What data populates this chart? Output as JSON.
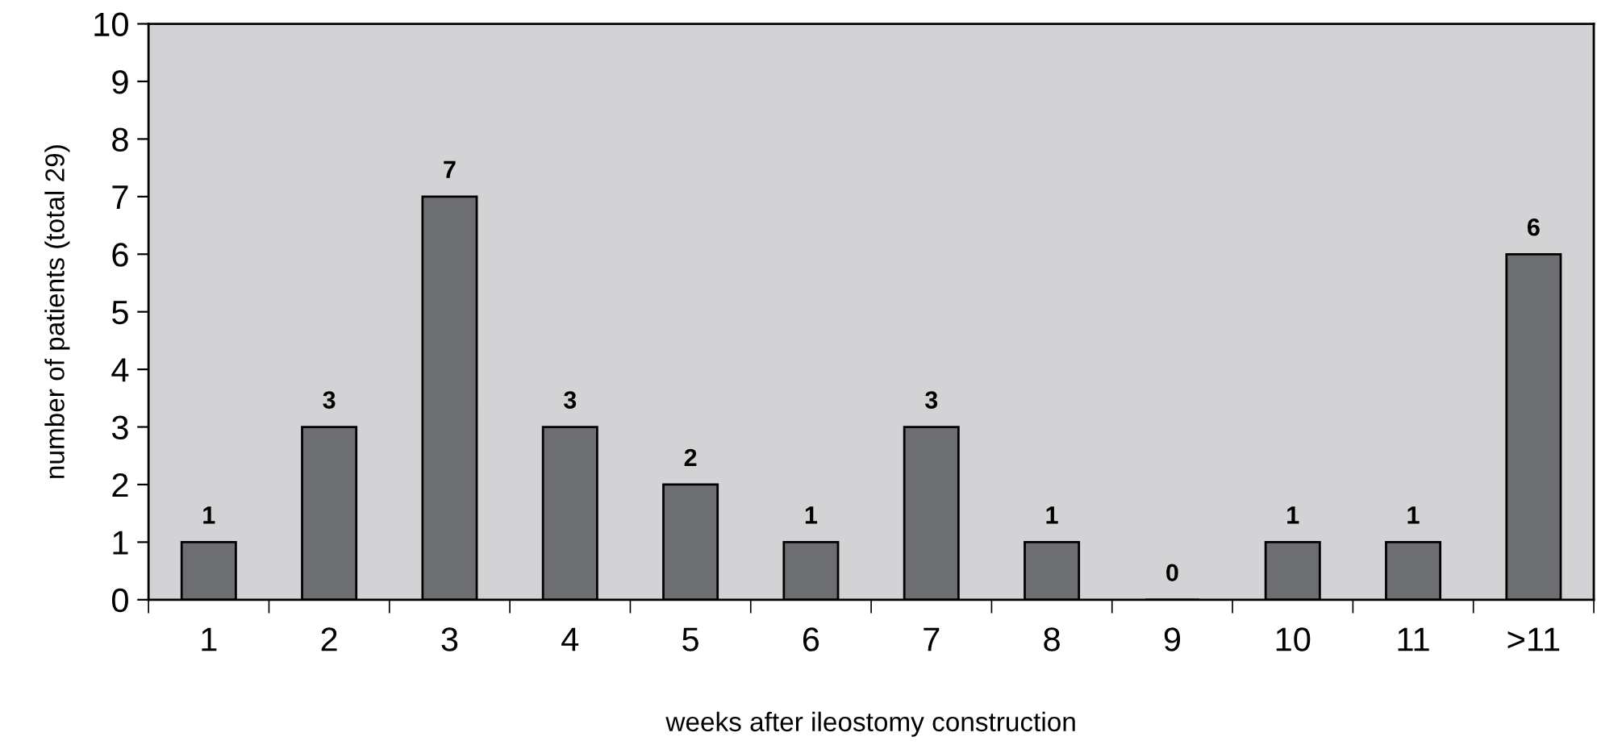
{
  "chart_data": {
    "type": "bar",
    "xlabel": "weeks after ileostomy construction",
    "ylabel": "number of patients (total 29)",
    "categories": [
      "1",
      "2",
      "3",
      "4",
      "5",
      "6",
      "7",
      "8",
      "9",
      "10",
      "11",
      ">11"
    ],
    "values": [
      1,
      3,
      7,
      3,
      2,
      1,
      3,
      1,
      0,
      1,
      1,
      6
    ],
    "color": "#6d6e71",
    "ylim": [
      0,
      10
    ],
    "yticks": [
      0,
      1,
      2,
      3,
      4,
      5,
      6,
      7,
      8,
      9,
      10
    ],
    "data_labels": true,
    "grid": false,
    "legend": false
  }
}
